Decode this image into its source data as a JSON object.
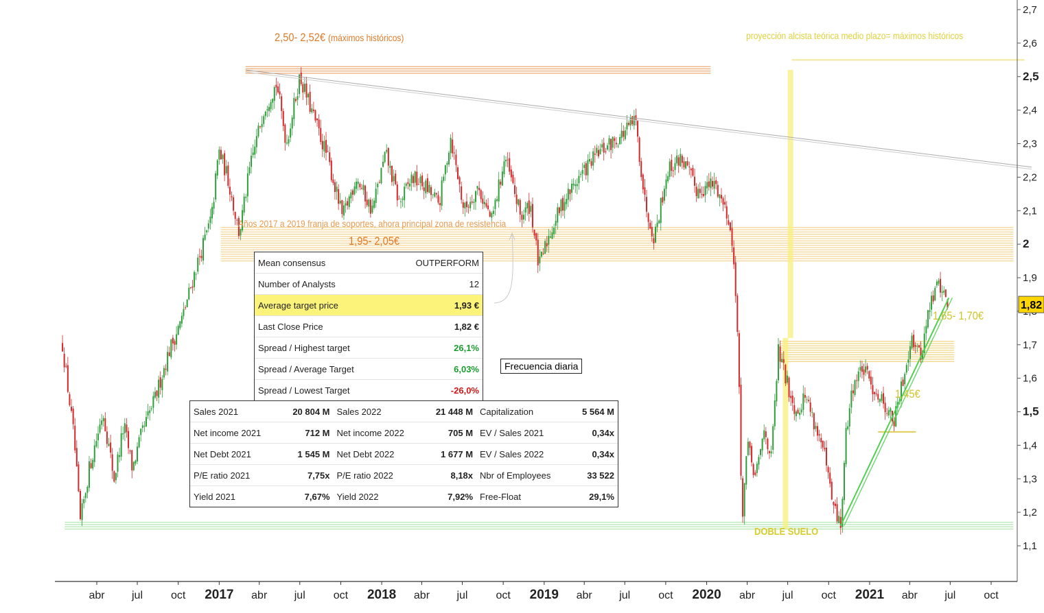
{
  "chart_data": {
    "type": "candlestick",
    "title": "",
    "xlabel": "",
    "ylabel": "",
    "ylim": [
      1.05,
      2.72
    ],
    "y_ticks": [
      "1,1",
      "1,2",
      "1,3",
      "1,4",
      "1,5",
      "1,6",
      "1,7",
      "1,8",
      "1,9",
      "2",
      "2,1",
      "2,2",
      "2,3",
      "2,4",
      "2,5",
      "2,6",
      "2,7"
    ],
    "y_tick_values": [
      1.1,
      1.2,
      1.3,
      1.4,
      1.5,
      1.6,
      1.7,
      1.8,
      1.9,
      2.0,
      2.1,
      2.2,
      2.3,
      2.4,
      2.5,
      2.6,
      2.7
    ],
    "bold_ticks": [
      "1,5",
      "2",
      "2,5"
    ],
    "x_ticks": [
      {
        "date": "2016-04-01",
        "label": "abr",
        "bold": false
      },
      {
        "date": "2016-07-01",
        "label": "jul",
        "bold": false
      },
      {
        "date": "2016-10-01",
        "label": "oct",
        "bold": false
      },
      {
        "date": "2017-01-01",
        "label": "2017",
        "bold": true
      },
      {
        "date": "2017-04-01",
        "label": "abr",
        "bold": false
      },
      {
        "date": "2017-07-01",
        "label": "jul",
        "bold": false
      },
      {
        "date": "2017-10-01",
        "label": "oct",
        "bold": false
      },
      {
        "date": "2018-01-01",
        "label": "2018",
        "bold": true
      },
      {
        "date": "2018-04-01",
        "label": "abr",
        "bold": false
      },
      {
        "date": "2018-07-01",
        "label": "jul",
        "bold": false
      },
      {
        "date": "2018-10-01",
        "label": "oct",
        "bold": false
      },
      {
        "date": "2019-01-01",
        "label": "2019",
        "bold": true
      },
      {
        "date": "2019-04-01",
        "label": "abr",
        "bold": false
      },
      {
        "date": "2019-07-01",
        "label": "jul",
        "bold": false
      },
      {
        "date": "2019-10-01",
        "label": "oct",
        "bold": false
      },
      {
        "date": "2020-01-01",
        "label": "2020",
        "bold": true
      },
      {
        "date": "2020-04-01",
        "label": "abr",
        "bold": false
      },
      {
        "date": "2020-07-01",
        "label": "jul",
        "bold": false
      },
      {
        "date": "2020-10-01",
        "label": "oct",
        "bold": false
      },
      {
        "date": "2021-01-01",
        "label": "2021",
        "bold": true
      },
      {
        "date": "2021-04-01",
        "label": "abr",
        "bold": false
      },
      {
        "date": "2021-07-01",
        "label": "jul",
        "bold": false
      },
      {
        "date": "2021-10-01",
        "label": "oct",
        "bold": false
      }
    ],
    "price_path": [
      [
        "2016-01-15",
        1.7
      ],
      [
        "2016-02-10",
        1.42
      ],
      [
        "2016-02-24",
        1.17
      ],
      [
        "2016-03-15",
        1.33
      ],
      [
        "2016-04-15",
        1.5
      ],
      [
        "2016-05-10",
        1.3
      ],
      [
        "2016-06-01",
        1.46
      ],
      [
        "2016-06-20",
        1.33
      ],
      [
        "2016-07-10",
        1.43
      ],
      [
        "2016-08-10",
        1.54
      ],
      [
        "2016-09-10",
        1.68
      ],
      [
        "2016-10-10",
        1.78
      ],
      [
        "2016-11-10",
        1.93
      ],
      [
        "2016-12-15",
        2.08
      ],
      [
        "2016-12-31",
        2.28
      ],
      [
        "2017-01-20",
        2.2
      ],
      [
        "2017-02-15",
        2.03
      ],
      [
        "2017-03-10",
        2.22
      ],
      [
        "2017-04-10",
        2.4
      ],
      [
        "2017-05-10",
        2.48
      ],
      [
        "2017-06-01",
        2.3
      ],
      [
        "2017-07-01",
        2.5
      ],
      [
        "2017-08-01",
        2.38
      ],
      [
        "2017-09-01",
        2.26
      ],
      [
        "2017-10-05",
        2.08
      ],
      [
        "2017-11-05",
        2.2
      ],
      [
        "2017-12-10",
        2.1
      ],
      [
        "2018-01-10",
        2.27
      ],
      [
        "2018-02-10",
        2.12
      ],
      [
        "2018-03-10",
        2.2
      ],
      [
        "2018-04-10",
        2.17
      ],
      [
        "2018-05-10",
        2.12
      ],
      [
        "2018-06-05",
        2.32
      ],
      [
        "2018-07-05",
        2.1
      ],
      [
        "2018-08-05",
        2.17
      ],
      [
        "2018-09-05",
        2.07
      ],
      [
        "2018-10-05",
        2.26
      ],
      [
        "2018-11-10",
        2.08
      ],
      [
        "2018-12-01",
        2.12
      ],
      [
        "2018-12-20",
        1.93
      ],
      [
        "2019-01-10",
        2.02
      ],
      [
        "2019-02-10",
        2.12
      ],
      [
        "2019-03-20",
        2.2
      ],
      [
        "2019-05-01",
        2.27
      ],
      [
        "2019-06-20",
        2.32
      ],
      [
        "2019-07-25",
        2.37
      ],
      [
        "2019-08-15",
        2.13
      ],
      [
        "2019-09-05",
        2.02
      ],
      [
        "2019-10-05",
        2.22
      ],
      [
        "2019-11-05",
        2.26
      ],
      [
        "2019-12-10",
        2.16
      ],
      [
        "2020-01-20",
        2.18
      ],
      [
        "2020-02-20",
        2.08
      ],
      [
        "2020-03-05",
        1.9
      ],
      [
        "2020-03-12",
        1.68
      ],
      [
        "2020-03-20",
        1.17
      ],
      [
        "2020-04-01",
        1.4
      ],
      [
        "2020-04-20",
        1.3
      ],
      [
        "2020-05-10",
        1.45
      ],
      [
        "2020-05-25",
        1.36
      ],
      [
        "2020-06-10",
        1.68
      ],
      [
        "2020-07-01",
        1.58
      ],
      [
        "2020-07-20",
        1.5
      ],
      [
        "2020-08-10",
        1.55
      ],
      [
        "2020-09-01",
        1.46
      ],
      [
        "2020-09-20",
        1.38
      ],
      [
        "2020-10-10",
        1.22
      ],
      [
        "2020-10-28",
        1.16
      ],
      [
        "2020-11-10",
        1.45
      ],
      [
        "2020-11-25",
        1.58
      ],
      [
        "2020-12-15",
        1.63
      ],
      [
        "2021-01-10",
        1.57
      ],
      [
        "2021-02-05",
        1.52
      ],
      [
        "2021-02-25",
        1.47
      ],
      [
        "2021-03-15",
        1.58
      ],
      [
        "2021-04-05",
        1.73
      ],
      [
        "2021-04-25",
        1.66
      ],
      [
        "2021-05-15",
        1.81
      ],
      [
        "2021-06-05",
        1.89
      ],
      [
        "2021-06-25",
        1.82
      ]
    ],
    "horizontal_bands": [
      {
        "name": "maximos-historicos",
        "y": [
          2.51,
          2.53
        ],
        "from": "2017-03-01",
        "to": "2020-01-10",
        "color": "#e2843a",
        "style": "lines"
      },
      {
        "name": "resistencia-2017-2019",
        "y": [
          1.95,
          2.05
        ],
        "from": "2017-01-05",
        "to": "2021-11-20",
        "color": "#f2c266",
        "style": "lines"
      },
      {
        "name": "zona-1-65-1-70",
        "y": [
          1.65,
          1.71
        ],
        "from": "2020-06-15",
        "to": "2021-07-10",
        "color": "#eac24a",
        "style": "lines"
      },
      {
        "name": "doble-suelo",
        "y": [
          1.15,
          1.17
        ],
        "from": "2016-01-20",
        "to": "2021-11-20",
        "color": "#8fdc8f",
        "style": "lines"
      }
    ],
    "trend_lines": [
      {
        "name": "bajista-largo-plazo",
        "from": [
          "2017-03-01",
          2.52
        ],
        "to": [
          "2021-12-31",
          2.23
        ],
        "color": "#aaaaaa"
      },
      {
        "name": "soporte-1-45",
        "from": [
          "2021-01-20",
          1.44
        ],
        "to": [
          "2021-04-15",
          1.44
        ],
        "color": "#e0cc5a"
      },
      {
        "name": "alcista",
        "from": [
          "2020-10-28",
          1.16
        ],
        "to": [
          "2021-06-28",
          1.84
        ],
        "color": "#52cf52"
      },
      {
        "name": "proyeccion-maximos",
        "from": [
          "2020-07-10",
          2.55
        ],
        "to": [
          "2021-12-15",
          2.55
        ],
        "color": "#f1e79a"
      }
    ],
    "vertical_bands": [
      {
        "name": "proyeccion-vertical",
        "from": "2020-07-01",
        "to": "2020-07-07",
        "y": [
          1.72,
          2.52
        ],
        "color": "#f8ef7d"
      },
      {
        "name": "doble-suelo-vertical",
        "from": "2020-06-20",
        "to": "2020-06-28",
        "y": [
          1.15,
          1.72
        ],
        "color": "#f8ef7d"
      }
    ],
    "last_price_label": "1,82"
  },
  "annotations": {
    "max_price": "2,50- 2,52€",
    "max_note": "(máximos históricos)",
    "projection": "proyección alcista teórica medio plazo= máximos históricos",
    "support_zone": "Años 2017 a 2019 franja de soportes, ahora principal zona de resistencia",
    "support_price": "1,95- 2,05€",
    "zone_165": "1,65- 1,70€",
    "zone_145": "1,45€",
    "double_bottom": "DOBLE SUELO",
    "frequency": "Frecuencia diaria"
  },
  "consensus": [
    {
      "label": "Mean consensus",
      "value": "OUTPERFORM",
      "tone": "plain",
      "highlight": false
    },
    {
      "label": "Number of Analysts",
      "value": "12",
      "tone": "plain",
      "highlight": false
    },
    {
      "label": "Average target price",
      "value": "1,93 €",
      "tone": "bold",
      "highlight": true
    },
    {
      "label": "Last Close Price",
      "value": "1,82 €",
      "tone": "bold",
      "highlight": false
    },
    {
      "label": "Spread / Highest target",
      "value": "26,1%",
      "tone": "pos",
      "highlight": false
    },
    {
      "label": "Spread / Average Target",
      "value": "6,03%",
      "tone": "pos",
      "highlight": false
    },
    {
      "label": "Spread / Lowest Target",
      "value": "-26,0%",
      "tone": "neg",
      "highlight": false
    }
  ],
  "fundamentals": [
    [
      {
        "label": "Sales 2021",
        "value": "20 804 M"
      },
      {
        "label": "Sales 2022",
        "value": "21 448 M"
      },
      {
        "label": "Capitalization",
        "value": "5 564 M"
      }
    ],
    [
      {
        "label": "Net income 2021",
        "value": "712 M"
      },
      {
        "label": "Net income 2022",
        "value": "705 M"
      },
      {
        "label": "EV / Sales 2021",
        "value": "0,34x"
      }
    ],
    [
      {
        "label": "Net Debt 2021",
        "value": "1 545 M"
      },
      {
        "label": "Net Debt 2022",
        "value": "1 677 M"
      },
      {
        "label": "EV / Sales 2022",
        "value": "0,34x"
      }
    ],
    [
      {
        "label": "P/E ratio 2021",
        "value": "7,75x"
      },
      {
        "label": "P/E ratio 2022",
        "value": "8,18x"
      },
      {
        "label": "Nbr of Employees",
        "value": "33 522"
      }
    ],
    [
      {
        "label": "Yield 2021",
        "value": "7,67%"
      },
      {
        "label": "Yield 2022",
        "value": "7,92%"
      },
      {
        "label": "Free-Float",
        "value": "29,1%"
      }
    ]
  ],
  "colors": {
    "bull_candle": "#2e9e3a",
    "bear_candle": "#d62728",
    "orange_text": "#e07b2a",
    "yellow_text": "#cfc42c",
    "green_line": "#52cf52"
  }
}
